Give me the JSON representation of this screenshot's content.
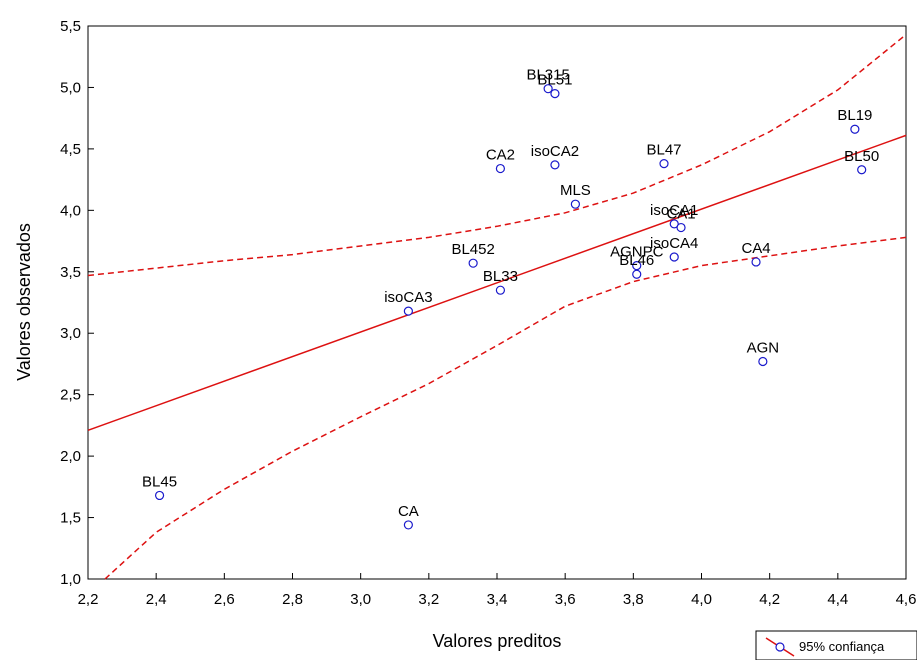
{
  "chart_data": {
    "type": "scatter",
    "xlabel": "Valores preditos",
    "ylabel": "Valores observados",
    "xlim": [
      2.2,
      4.6
    ],
    "ylim": [
      1.0,
      5.5
    ],
    "x_ticks": [
      "2,2",
      "2,4",
      "2,6",
      "2,8",
      "3,0",
      "3,2",
      "3,4",
      "3,6",
      "3,8",
      "4,0",
      "4,2",
      "4,4",
      "4,6"
    ],
    "y_ticks": [
      "1,0",
      "1,5",
      "2,0",
      "2,5",
      "3,0",
      "3,5",
      "4,0",
      "4,5",
      "5,0",
      "5,5"
    ],
    "grid": false,
    "legend": {
      "position": "bottom-right",
      "label": "95% confiança"
    },
    "colors": {
      "points": "#1a1acc",
      "fit": "#dd1111",
      "band": "#dd1111"
    },
    "points": [
      {
        "label": "BL315",
        "x": 3.55,
        "y": 4.99
      },
      {
        "label": "BL51",
        "x": 3.57,
        "y": 4.95
      },
      {
        "label": "BL19",
        "x": 4.45,
        "y": 4.66
      },
      {
        "label": "BL47",
        "x": 3.89,
        "y": 4.38
      },
      {
        "label": "isoCA2",
        "x": 3.57,
        "y": 4.37
      },
      {
        "label": "CA2",
        "x": 3.41,
        "y": 4.34
      },
      {
        "label": "BL50",
        "x": 4.47,
        "y": 4.33
      },
      {
        "label": "MLS",
        "x": 3.63,
        "y": 4.05
      },
      {
        "label": "isoCA1",
        "x": 3.92,
        "y": 3.89
      },
      {
        "label": "CA1",
        "x": 3.94,
        "y": 3.86
      },
      {
        "label": "isoCA4",
        "x": 3.92,
        "y": 3.62
      },
      {
        "label": "CA4",
        "x": 4.16,
        "y": 3.58
      },
      {
        "label": "BL452",
        "x": 3.33,
        "y": 3.57
      },
      {
        "label": "AGNPC",
        "x": 3.81,
        "y": 3.55
      },
      {
        "label": "BL46",
        "x": 3.81,
        "y": 3.48
      },
      {
        "label": "BL33",
        "x": 3.41,
        "y": 3.35
      },
      {
        "label": "isoCA3",
        "x": 3.14,
        "y": 3.18
      },
      {
        "label": "AGN",
        "x": 4.18,
        "y": 2.77
      },
      {
        "label": "BL45",
        "x": 2.41,
        "y": 1.68
      },
      {
        "label": "CA",
        "x": 3.14,
        "y": 1.44
      }
    ],
    "fit_line": {
      "x": [
        2.2,
        4.6
      ],
      "y": [
        2.21,
        4.61
      ]
    },
    "upper_band": {
      "x": [
        2.2,
        2.4,
        2.6,
        2.8,
        3.0,
        3.2,
        3.4,
        3.6,
        3.8,
        4.0,
        4.2,
        4.4,
        4.6
      ],
      "y": [
        3.47,
        3.53,
        3.59,
        3.64,
        3.71,
        3.78,
        3.87,
        3.98,
        4.14,
        4.37,
        4.64,
        4.98,
        5.43
      ]
    },
    "lower_band": {
      "x": [
        2.25,
        2.4,
        2.6,
        2.8,
        3.0,
        3.2,
        3.4,
        3.6,
        3.8,
        4.0,
        4.2,
        4.4,
        4.6
      ],
      "y": [
        1.0,
        1.38,
        1.73,
        2.04,
        2.32,
        2.59,
        2.9,
        3.22,
        3.42,
        3.55,
        3.63,
        3.71,
        3.78
      ]
    }
  }
}
